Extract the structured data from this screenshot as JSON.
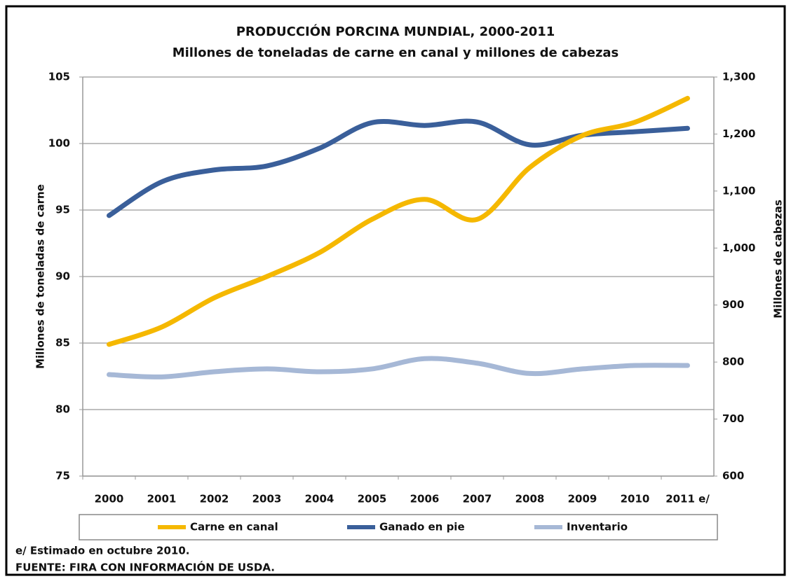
{
  "chart_data": {
    "type": "line",
    "title": "PRODUCCIÓN PORCINA MUNDIAL, 2000-2011",
    "subtitle": "Millones de toneladas de carne en canal y millones de cabezas",
    "y_label": "Millones de toneladas de carne",
    "y2_label": "Millones de cabezas",
    "categories": [
      "2000",
      "2001",
      "2002",
      "2003",
      "2004",
      "2005",
      "2006",
      "2007",
      "2008",
      "2009",
      "2010",
      "2011 e/"
    ],
    "series": [
      {
        "name": "Carne en canal",
        "color": "#f5b800",
        "values": [
          84.9,
          86.2,
          88.4,
          90.0,
          91.8,
          94.3,
          95.8,
          94.3,
          98.2,
          100.6,
          101.6,
          103.4
        ]
      },
      {
        "name": "Ganado en pie",
        "color": "#3a5f9a",
        "axis": "y2",
        "values": [
          1057,
          1116,
          1137,
          1144,
          1175,
          1220,
          1215,
          1221,
          1181,
          1198,
          1204,
          1210
        ]
      },
      {
        "name": "Inventario",
        "color": "#a6b8d6",
        "axis": "y2",
        "values": [
          778,
          774,
          783,
          788,
          783,
          788,
          806,
          798,
          780,
          788,
          794,
          794
        ]
      }
    ],
    "ylim": [
      75,
      105
    ],
    "yticks": [
      75,
      80,
      85,
      90,
      95,
      100,
      105
    ],
    "y2lim": [
      600,
      1300
    ],
    "y2ticks": [
      600,
      700,
      800,
      900,
      {
        "value": 1000,
        "label": "1,000"
      },
      {
        "value": 1100,
        "label": "1,100"
      },
      {
        "value": 1200,
        "label": "1,200"
      },
      {
        "value": 1300,
        "label": "1,300"
      }
    ],
    "grid": true,
    "legend": "bottom",
    "notes": [
      "e/ Estimado en octubre 2010.",
      "FUENTE: FIRA CON INFORMACIÓN DE USDA."
    ]
  }
}
